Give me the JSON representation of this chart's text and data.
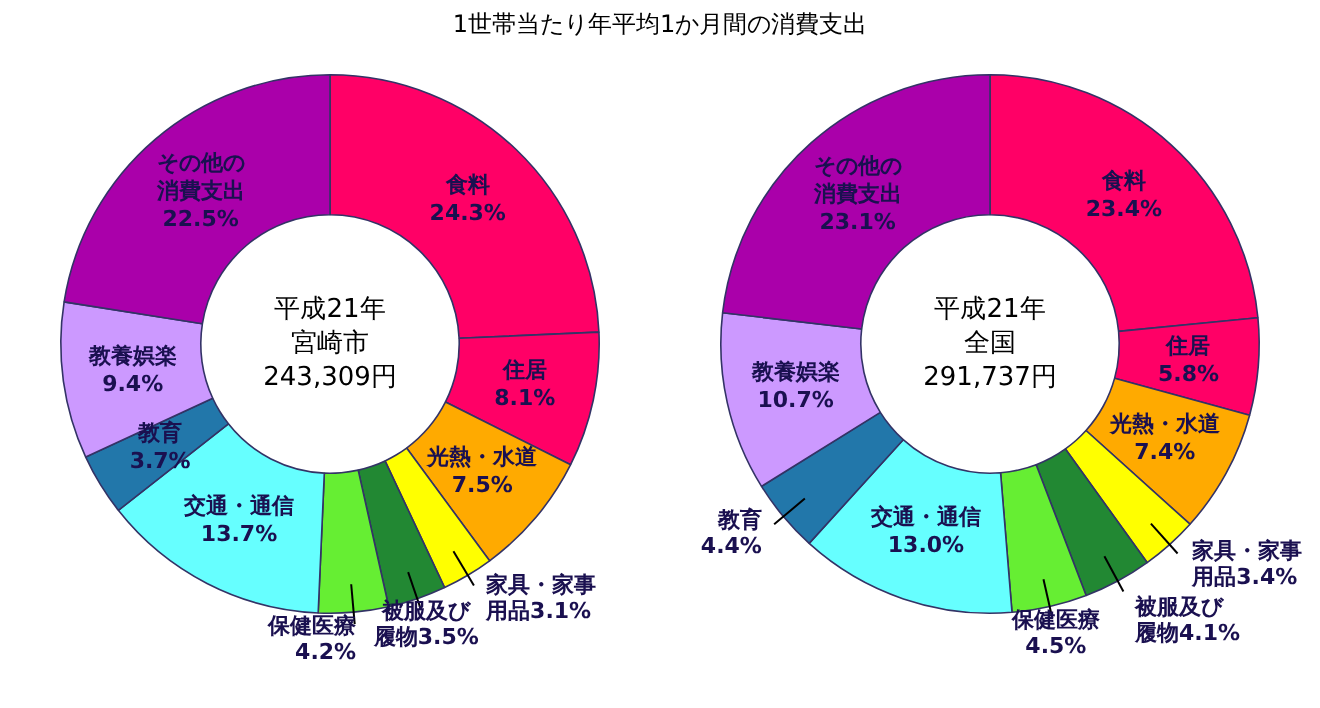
{
  "chart_data": [
    {
      "type": "donut",
      "title": "1世帯当たり年平均1か月間の消費支出",
      "categories": [
        "食料",
        "住居",
        "光熱・水道",
        "家具・家事用品",
        "被服及び履物",
        "保健医療",
        "交通・通信",
        "教育",
        "教養娯楽",
        "その他の消費支出"
      ],
      "values": [
        24.3,
        8.1,
        7.5,
        3.1,
        3.5,
        4.2,
        13.7,
        3.7,
        9.4,
        22.5
      ],
      "value_labels": [
        "24.3%",
        "8.1%",
        "7.5%",
        "3.1%",
        "3.5%",
        "4.2%",
        "13.7%",
        "3.7%",
        "9.4%",
        "22.5%"
      ],
      "colors": [
        "#ff0066",
        "#ff0066",
        "#ffaa00",
        "#ffff00",
        "#228833",
        "#66ee33",
        "#66ffff",
        "#2277aa",
        "#cc99ff",
        "#aa00aa"
      ],
      "annotations": [
        "平成21年",
        "宮崎市",
        "243,309円"
      ],
      "legend": false
    },
    {
      "type": "donut",
      "categories": [
        "食料",
        "住居",
        "光熱・水道",
        "家具・家事用品",
        "被服及び履物",
        "保健医療",
        "交通・通信",
        "教育",
        "教養娯楽",
        "その他の消費支出"
      ],
      "values": [
        23.4,
        5.8,
        7.4,
        3.4,
        4.1,
        4.5,
        13.0,
        4.4,
        10.7,
        23.1
      ],
      "value_labels": [
        "23.4%",
        "5.8%",
        "7.4%",
        "3.4%",
        "4.1%",
        "4.5%",
        "13.0%",
        "4.4%",
        "10.7%",
        "23.1%"
      ],
      "colors": [
        "#ff0066",
        "#ff0066",
        "#ffaa00",
        "#ffff00",
        "#228833",
        "#66ee33",
        "#66ffff",
        "#2277aa",
        "#cc99ff",
        "#aa00aa"
      ],
      "annotations": [
        "平成21年",
        "全国",
        "291,737円"
      ],
      "legend": false
    }
  ]
}
